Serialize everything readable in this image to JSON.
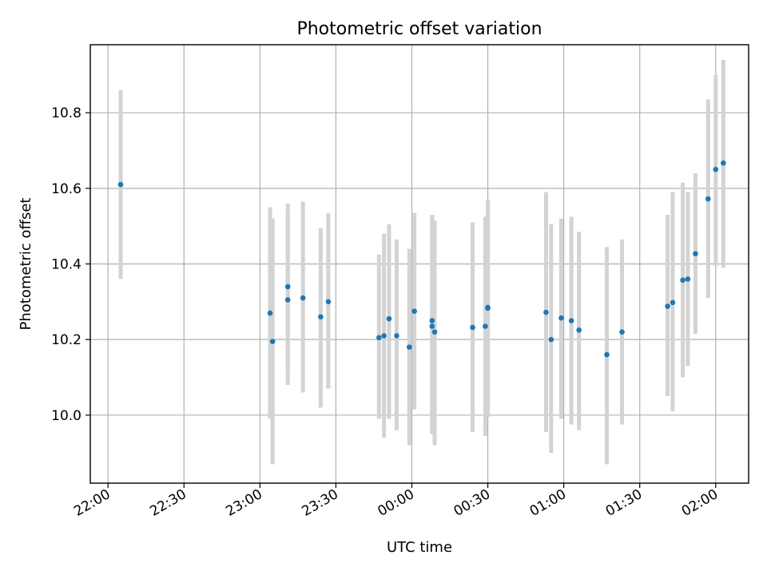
{
  "chart_data": {
    "type": "scatter",
    "title": "Photometric offset variation",
    "xlabel": "UTC time",
    "ylabel": "Photometric offset",
    "x_unit": "UTC time (HH:MM)",
    "xlim": [
      "21:53",
      "02:13"
    ],
    "ylim": [
      9.82,
      10.98
    ],
    "x_ticks": [
      "22:00",
      "22:30",
      "23:00",
      "23:30",
      "00:00",
      "00:30",
      "01:00",
      "01:30",
      "02:00"
    ],
    "y_ticks": [
      "10.0",
      "10.2",
      "10.4",
      "10.6",
      "10.8"
    ],
    "grid": true,
    "marker_color": "#1f77b4",
    "errorbar_color": "#d3d3d3",
    "series": [
      {
        "points": [
          {
            "x": "22:05",
            "y": 10.61,
            "ylo": 10.36,
            "yhi": 10.86
          },
          {
            "x": "23:04",
            "y": 10.27,
            "ylo": 9.99,
            "yhi": 10.55
          },
          {
            "x": "23:05",
            "y": 10.195,
            "ylo": 9.87,
            "yhi": 10.52
          },
          {
            "x": "23:11",
            "y": 10.34,
            "ylo": 10.12,
            "yhi": 10.56
          },
          {
            "x": "23:11",
            "y": 10.305,
            "ylo": 10.08,
            "yhi": 10.53
          },
          {
            "x": "23:17",
            "y": 10.31,
            "ylo": 10.06,
            "yhi": 10.565
          },
          {
            "x": "23:24",
            "y": 10.26,
            "ylo": 10.02,
            "yhi": 10.495
          },
          {
            "x": "23:27",
            "y": 10.3,
            "ylo": 10.07,
            "yhi": 10.535
          },
          {
            "x": "23:47",
            "y": 10.205,
            "ylo": 9.99,
            "yhi": 10.425
          },
          {
            "x": "23:49",
            "y": 10.21,
            "ylo": 9.94,
            "yhi": 10.48
          },
          {
            "x": "23:51",
            "y": 10.255,
            "ylo": 9.99,
            "yhi": 10.505
          },
          {
            "x": "23:54",
            "y": 10.21,
            "ylo": 9.96,
            "yhi": 10.465
          },
          {
            "x": "23:59",
            "y": 10.18,
            "ylo": 9.92,
            "yhi": 10.44
          },
          {
            "x": "00:01",
            "y": 10.275,
            "ylo": 10.015,
            "yhi": 10.535
          },
          {
            "x": "00:08",
            "y": 10.25,
            "ylo": 9.96,
            "yhi": 10.53
          },
          {
            "x": "00:08",
            "y": 10.235,
            "ylo": 9.95,
            "yhi": 10.52
          },
          {
            "x": "00:09",
            "y": 10.22,
            "ylo": 9.92,
            "yhi": 10.515
          },
          {
            "x": "00:24",
            "y": 10.232,
            "ylo": 9.955,
            "yhi": 10.51
          },
          {
            "x": "00:29",
            "y": 10.235,
            "ylo": 9.945,
            "yhi": 10.525
          },
          {
            "x": "00:30",
            "y": 10.283,
            "ylo": 10.0,
            "yhi": 10.57
          },
          {
            "x": "00:30",
            "y": 10.285,
            "ylo": 9.995,
            "yhi": 10.565
          },
          {
            "x": "00:53",
            "y": 10.272,
            "ylo": 9.955,
            "yhi": 10.59
          },
          {
            "x": "00:55",
            "y": 10.2,
            "ylo": 9.9,
            "yhi": 10.505
          },
          {
            "x": "00:59",
            "y": 10.257,
            "ylo": 9.99,
            "yhi": 10.52
          },
          {
            "x": "01:03",
            "y": 10.25,
            "ylo": 9.975,
            "yhi": 10.525
          },
          {
            "x": "01:06",
            "y": 10.225,
            "ylo": 9.96,
            "yhi": 10.485
          },
          {
            "x": "01:17",
            "y": 10.16,
            "ylo": 9.87,
            "yhi": 10.445
          },
          {
            "x": "01:23",
            "y": 10.22,
            "ylo": 9.975,
            "yhi": 10.465
          },
          {
            "x": "01:41",
            "y": 10.288,
            "ylo": 10.05,
            "yhi": 10.53
          },
          {
            "x": "01:43",
            "y": 10.298,
            "ylo": 10.01,
            "yhi": 10.59
          },
          {
            "x": "01:47",
            "y": 10.357,
            "ylo": 10.1,
            "yhi": 10.615
          },
          {
            "x": "01:49",
            "y": 10.36,
            "ylo": 10.13,
            "yhi": 10.59
          },
          {
            "x": "01:52",
            "y": 10.427,
            "ylo": 10.215,
            "yhi": 10.64
          },
          {
            "x": "01:57",
            "y": 10.572,
            "ylo": 10.31,
            "yhi": 10.835
          },
          {
            "x": "02:00",
            "y": 10.65,
            "ylo": 10.395,
            "yhi": 10.9
          },
          {
            "x": "02:03",
            "y": 10.667,
            "ylo": 10.39,
            "yhi": 10.94
          }
        ]
      }
    ]
  }
}
